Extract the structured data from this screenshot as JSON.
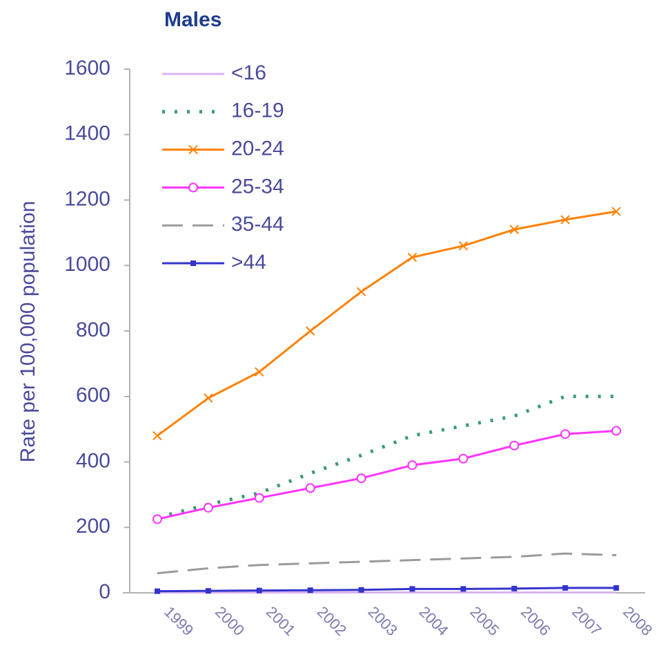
{
  "chart_data": {
    "type": "line",
    "title": "Males",
    "y_label": "Rate per 100,000 population",
    "categories": [
      "1999",
      "2000",
      "2001",
      "2002",
      "2003",
      "2004",
      "2005",
      "2006",
      "2007",
      "2008"
    ],
    "series": [
      {
        "name": "<16",
        "color": "#d8b4f0",
        "dash": "solid",
        "marker": "none",
        "values": [
          1,
          1,
          1,
          1,
          1,
          1,
          1,
          1,
          1,
          1
        ]
      },
      {
        "name": "16-19",
        "color": "#3c9b73",
        "dash": "dotted",
        "marker": "none",
        "values": [
          230,
          270,
          305,
          365,
          420,
          480,
          510,
          540,
          600,
          600
        ]
      },
      {
        "name": "20-24",
        "color": "#ff8000",
        "dash": "solid",
        "marker": "x",
        "values": [
          480,
          595,
          675,
          800,
          920,
          1025,
          1060,
          1110,
          1140,
          1165
        ]
      },
      {
        "name": "25-34",
        "color": "#ff33ff",
        "dash": "solid",
        "marker": "circle",
        "values": [
          225,
          260,
          290,
          320,
          350,
          390,
          410,
          450,
          485,
          495
        ]
      },
      {
        "name": "35-44",
        "color": "#9a9a9a",
        "dash": "dashed",
        "marker": "none",
        "values": [
          60,
          75,
          85,
          90,
          95,
          100,
          105,
          110,
          120,
          115
        ]
      },
      {
        "name": ">44",
        "color": "#3333cc",
        "dash": "solid",
        "marker": "square",
        "values": [
          5,
          6,
          7,
          8,
          9,
          12,
          12,
          13,
          15,
          15
        ]
      }
    ],
    "ylim": [
      0,
      1600
    ],
    "yticks": [
      0,
      200,
      400,
      600,
      800,
      1000,
      1200,
      1400,
      1600
    ]
  }
}
